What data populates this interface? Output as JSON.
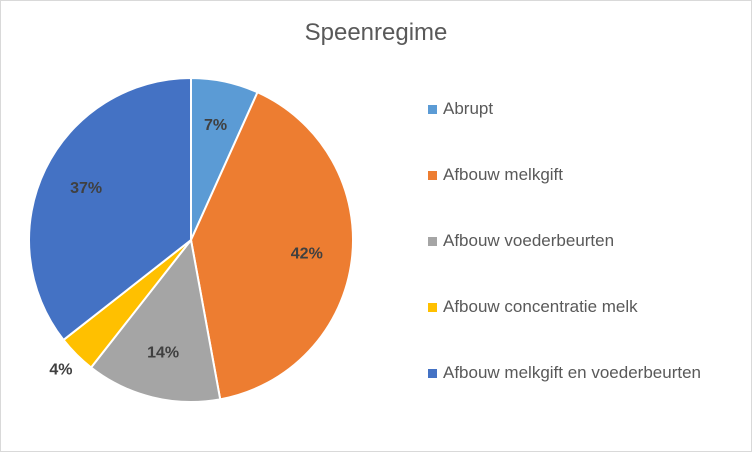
{
  "chart_data": {
    "type": "pie",
    "title": "Speenregime",
    "categories": [
      "Abrupt",
      "Afbouw melkgift",
      "Afbouw voederbeurten",
      "Afbouw concentratie melk",
      "Afbouw melkgift en voederbeurten"
    ],
    "values": [
      7,
      42,
      14,
      4,
      37
    ],
    "data_labels": [
      "7%",
      "42%",
      "14%",
      "4%",
      "37%"
    ],
    "colors": [
      "#5B9BD5",
      "#ED7D31",
      "#A5A5A5",
      "#FFC000",
      "#4472C4"
    ],
    "legend_position": "right"
  }
}
